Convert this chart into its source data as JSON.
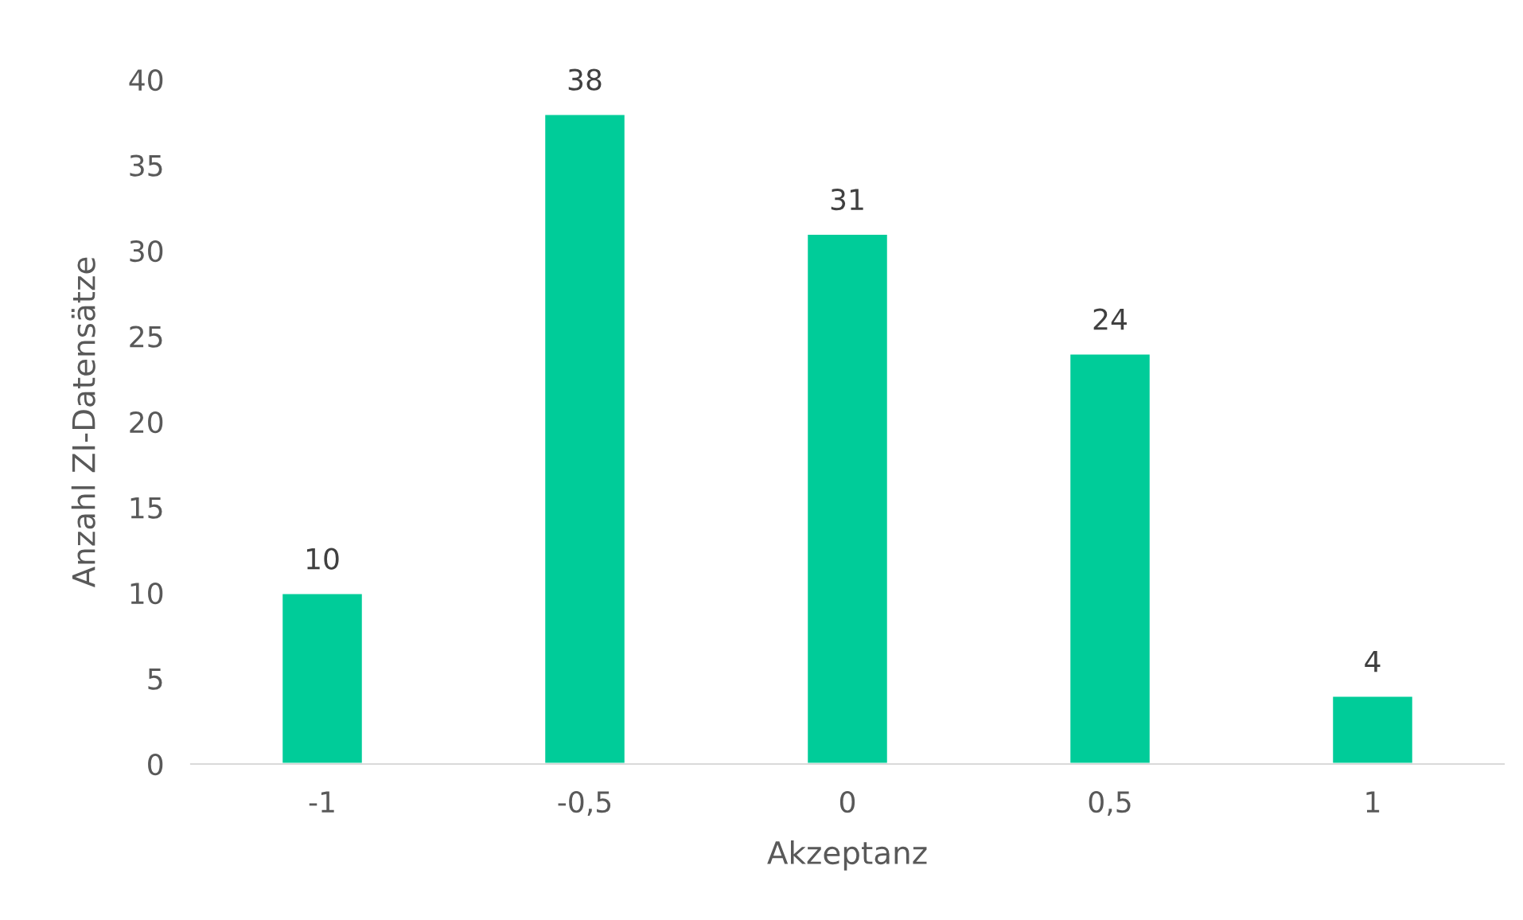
{
  "chart_data": {
    "type": "bar",
    "xlabel": "Akzeptanz",
    "ylabel": "Anzahl ZI-Datensätze",
    "categories": [
      "-1",
      "-0,5",
      "0",
      "0,5",
      "1"
    ],
    "values": [
      10,
      38,
      31,
      24,
      4
    ],
    "color": "#00cc99",
    "ylim": [
      0,
      40
    ],
    "yticks": [
      0,
      5,
      10,
      15,
      20,
      25,
      30,
      35,
      40
    ],
    "grid": false,
    "data_labels": true
  }
}
